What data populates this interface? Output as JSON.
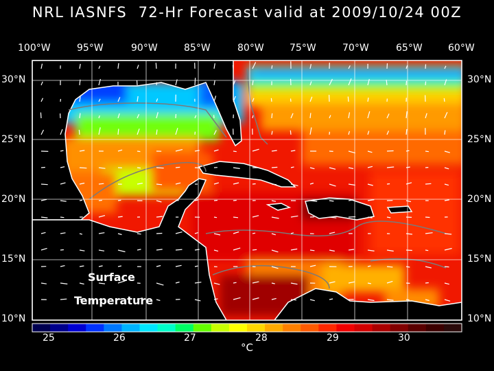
{
  "title": "NRL IASNFS  72-Hr Forecast valid at 2009/10/24 00Z",
  "longitude_labels": [
    "100°W",
    "95°W",
    "90°W",
    "85°W",
    "80°W",
    "75°W",
    "70°W",
    "65°W",
    "60°W"
  ],
  "latitude_labels": [
    "30°N",
    "25°N",
    "20°N",
    "15°N",
    "10°N"
  ],
  "overlay": {
    "line1": "Surface",
    "line2": "Temperature"
  },
  "colorbar": {
    "tick_labels": [
      "25",
      "26",
      "27",
      "28",
      "29",
      "30"
    ],
    "unit": "°C",
    "colors": [
      "#000050",
      "#00008c",
      "#0000d2",
      "#0032ff",
      "#0078ff",
      "#00b4ff",
      "#00e6ff",
      "#00ffc8",
      "#00ff64",
      "#64ff00",
      "#c8ff00",
      "#ffff00",
      "#ffd700",
      "#ffaa00",
      "#ff8000",
      "#ff5a00",
      "#ff2800",
      "#f00000",
      "#d20000",
      "#aa0000",
      "#820000",
      "#5a0000",
      "#3c0000",
      "#2a0a0a"
    ]
  },
  "colors": {
    "background": "#000000",
    "land": "#000000",
    "coast": "#ffffff",
    "grid": "#ffffff",
    "bathymetry_contour": "#7a7a7a"
  }
}
